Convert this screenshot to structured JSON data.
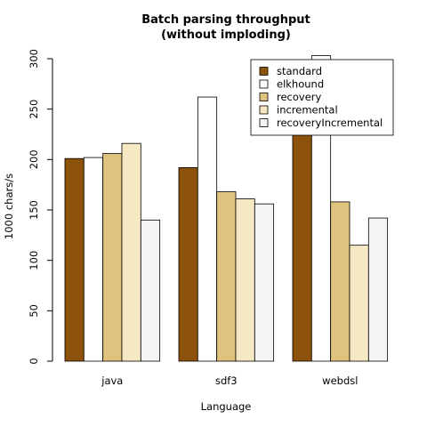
{
  "chart_data": {
    "type": "bar",
    "title": [
      "Batch parsing throughput",
      "(without imploding)"
    ],
    "xlabel": "Language",
    "ylabel": "1000 chars/s",
    "ylim": [
      0,
      300
    ],
    "yticks": [
      "0",
      "50",
      "100",
      "150",
      "200",
      "250",
      "300"
    ],
    "categories": [
      "java",
      "sdf3",
      "webdsl"
    ],
    "series": [
      {
        "name": "standard",
        "color": "#8c510a",
        "values": [
          201,
          192,
          226
        ]
      },
      {
        "name": "elkhound",
        "color": "#ffffff",
        "values": [
          202,
          262,
          303
        ]
      },
      {
        "name": "recovery",
        "color": "#dfc27d",
        "values": [
          206,
          168,
          158
        ]
      },
      {
        "name": "incremental",
        "color": "#f6e8c3",
        "values": [
          216,
          161,
          115
        ]
      },
      {
        "name": "recoveryIncremental",
        "color": "#f5f5f5",
        "values": [
          140,
          156,
          142
        ]
      }
    ],
    "legend": "top-right",
    "grid": false
  }
}
